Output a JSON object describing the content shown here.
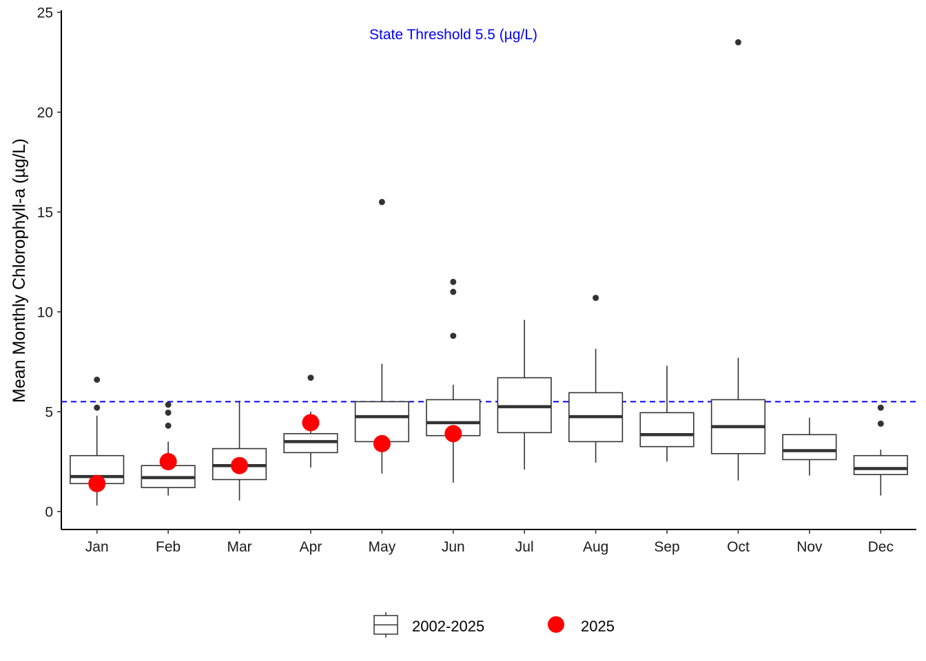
{
  "chart_data": {
    "type": "box",
    "ylabel": "Mean Monthly Chlorophyll-a (µg/L)",
    "xlabel": "",
    "ylim": [
      -0.9,
      25.1
    ],
    "yticks": [
      0,
      5,
      10,
      15,
      20,
      25
    ],
    "categories": [
      "Jan",
      "Feb",
      "Mar",
      "Apr",
      "May",
      "Jun",
      "Jul",
      "Aug",
      "Sep",
      "Oct",
      "Nov",
      "Dec"
    ],
    "threshold": {
      "value": 5.5,
      "label": "State Threshold 5.5 (µg/L)",
      "color": "#0000ff"
    },
    "series": [
      {
        "name": "2002-2025",
        "kind": "boxplot",
        "boxes": [
          {
            "month": "Jan",
            "low": 0.3,
            "q1": 1.4,
            "median": 1.75,
            "q3": 2.8,
            "high": 4.8,
            "outliers": [
              5.2,
              6.6
            ]
          },
          {
            "month": "Feb",
            "low": 0.8,
            "q1": 1.2,
            "median": 1.7,
            "q3": 2.3,
            "high": 3.5,
            "outliers": [
              4.3,
              4.95,
              5.35
            ]
          },
          {
            "month": "Mar",
            "low": 0.55,
            "q1": 1.6,
            "median": 2.3,
            "q3": 3.15,
            "high": 5.55,
            "outliers": []
          },
          {
            "month": "Apr",
            "low": 2.2,
            "q1": 2.95,
            "median": 3.5,
            "q3": 3.9,
            "high": 5.0,
            "outliers": [
              6.7
            ]
          },
          {
            "month": "May",
            "low": 1.9,
            "q1": 3.5,
            "median": 4.75,
            "q3": 5.5,
            "high": 7.4,
            "outliers": [
              15.5
            ]
          },
          {
            "month": "Jun",
            "low": 1.45,
            "q1": 3.8,
            "median": 4.45,
            "q3": 5.6,
            "high": 6.35,
            "outliers": [
              8.8,
              11.0,
              11.5
            ]
          },
          {
            "month": "Jul",
            "low": 2.1,
            "q1": 3.95,
            "median": 5.25,
            "q3": 6.7,
            "high": 9.6,
            "outliers": []
          },
          {
            "month": "Aug",
            "low": 2.45,
            "q1": 3.5,
            "median": 4.75,
            "q3": 5.95,
            "high": 8.15,
            "outliers": [
              10.7
            ]
          },
          {
            "month": "Sep",
            "low": 2.5,
            "q1": 3.25,
            "median": 3.85,
            "q3": 4.95,
            "high": 7.3,
            "outliers": []
          },
          {
            "month": "Oct",
            "low": 1.55,
            "q1": 2.9,
            "median": 4.25,
            "q3": 5.6,
            "high": 7.7,
            "outliers": [
              23.5
            ]
          },
          {
            "month": "Nov",
            "low": 1.8,
            "q1": 2.6,
            "median": 3.05,
            "q3": 3.85,
            "high": 4.7,
            "outliers": []
          },
          {
            "month": "Dec",
            "low": 0.8,
            "q1": 1.85,
            "median": 2.15,
            "q3": 2.8,
            "high": 3.1,
            "outliers": [
              4.4,
              5.2
            ]
          }
        ]
      },
      {
        "name": "2025",
        "kind": "points",
        "color": "#ff0000",
        "points": [
          {
            "month": "Jan",
            "value": 1.4
          },
          {
            "month": "Feb",
            "value": 2.5
          },
          {
            "month": "Mar",
            "value": 2.3
          },
          {
            "month": "Apr",
            "value": 4.45
          },
          {
            "month": "May",
            "value": 3.4
          },
          {
            "month": "Jun",
            "value": 3.9
          }
        ]
      }
    ],
    "legend": {
      "position": "bottom",
      "entries": [
        "2002-2025",
        "2025"
      ]
    },
    "grid": false
  }
}
